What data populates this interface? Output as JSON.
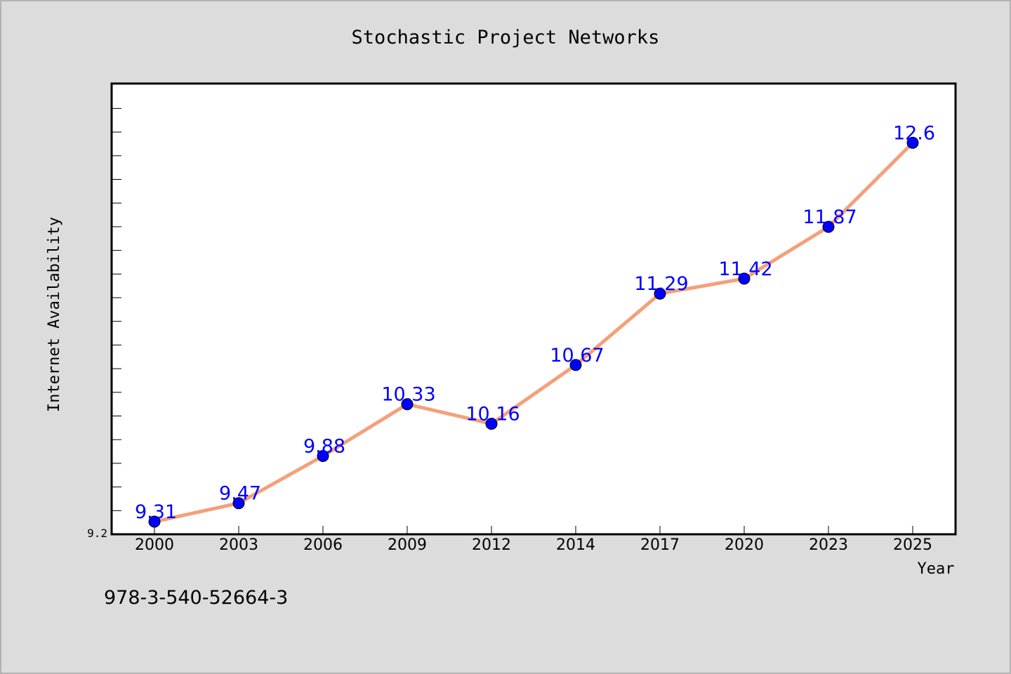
{
  "chart_data": {
    "type": "line",
    "title": "Stochastic Project Networks",
    "xlabel": "Year",
    "ylabel": "Internet Availability",
    "categories": [
      "2000",
      "2003",
      "2006",
      "2009",
      "2012",
      "2014",
      "2017",
      "2020",
      "2023",
      "2025"
    ],
    "series": [
      {
        "values": [
          9.31,
          9.47,
          9.88,
          10.33,
          10.16,
          10.67,
          11.29,
          11.42,
          11.87,
          12.6
        ],
        "data_labels": [
          "9.31",
          "9.47",
          "9.88",
          "10.33",
          "10.16",
          "10.67",
          "11.29",
          "11.42",
          "11.87",
          "12.6"
        ],
        "line_color": "#f4a07a",
        "marker_color": "#0000ff"
      }
    ],
    "ylim": [
      9.2,
      13.0
    ],
    "ytick_labels": [
      "9.2"
    ],
    "grid": false,
    "colors": {
      "background": "#dcdcdc",
      "plot_area": "#ffffff",
      "line": "#f4a07a",
      "marker": "#0000ff",
      "data_label": "#0000ff"
    }
  },
  "footer": {
    "code": "978-3-540-52664-3"
  }
}
